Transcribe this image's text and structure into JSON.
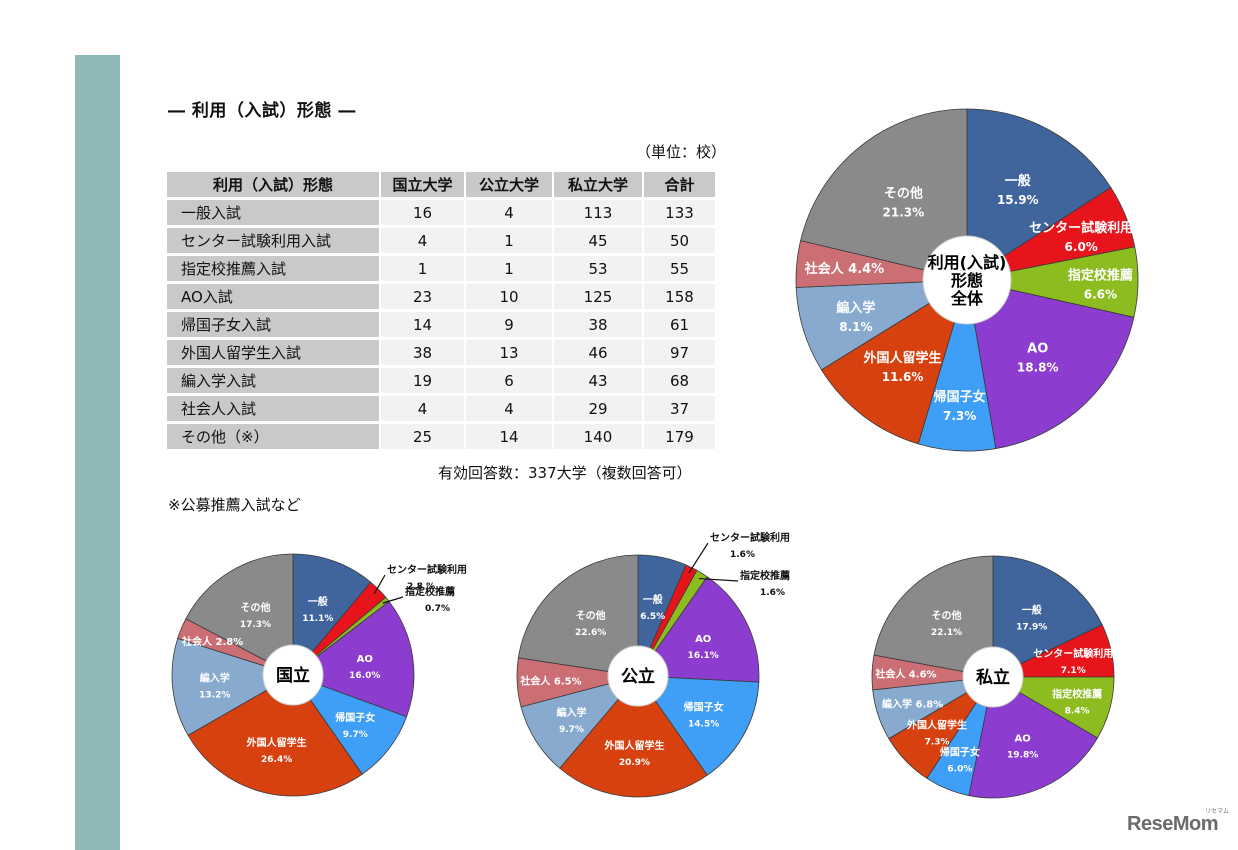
{
  "title": "― 利用（入試）形態 ―",
  "unit_note": "（単位：校）",
  "table": {
    "headers": [
      "利用（入試）形態",
      "国立大学",
      "公立大学",
      "私立大学",
      "合計"
    ],
    "rows": [
      {
        "label": "一般入試",
        "values": [
          "16",
          "4",
          "113",
          "133"
        ]
      },
      {
        "label": "センター試験利用入試",
        "values": [
          "4",
          "1",
          "45",
          "50"
        ]
      },
      {
        "label": "指定校推薦入試",
        "values": [
          "1",
          "1",
          "53",
          "55"
        ]
      },
      {
        "label": "AO入試",
        "values": [
          "23",
          "10",
          "125",
          "158"
        ]
      },
      {
        "label": "帰国子女入試",
        "values": [
          "14",
          "9",
          "38",
          "61"
        ]
      },
      {
        "label": "外国人留学生入試",
        "values": [
          "38",
          "13",
          "46",
          "97"
        ]
      },
      {
        "label": "編入学入試",
        "values": [
          "19",
          "6",
          "43",
          "68"
        ]
      },
      {
        "label": "社会人入試",
        "values": [
          "4",
          "4",
          "29",
          "37"
        ]
      },
      {
        "label": "その他（※）",
        "values": [
          "25",
          "14",
          "140",
          "179"
        ]
      }
    ]
  },
  "response_note": "有効回答数：337大学（複数回答可）",
  "footnote": "※公募推薦入試など",
  "colors": {
    "一般": "#3f659c",
    "センター試験利用": "#e8141b",
    "指定校推薦": "#8cbc1f",
    "AO": "#8c3ccf",
    "帰国子女": "#3f9ef5",
    "外国人留学生": "#d7400f",
    "編入学": "#88aacf",
    "社会人": "#cc6f75",
    "その他": "#8a8a8a",
    "sidebar": "#8fb9b9",
    "table_header_bg": "#c9c9c9",
    "table_cell_bg": "#f2f2f2"
  },
  "logo": {
    "text": "ReseMom",
    "sub": "リセマム"
  },
  "chart_data": [
    {
      "type": "pie",
      "title": "利用（入試）形態 全体",
      "center_label": [
        "利用(入試)",
        "形態",
        "全体"
      ],
      "categories": [
        "一般",
        "センター試験利用",
        "指定校推薦",
        "AO",
        "帰国子女",
        "外国人留学生",
        "編入学",
        "社会人",
        "その他"
      ],
      "values": [
        15.9,
        6.0,
        6.6,
        18.8,
        7.3,
        11.6,
        8.1,
        4.4,
        21.3
      ],
      "labels": [
        "15.9%",
        "6.0%",
        "6.6%",
        "18.8%",
        "7.3%",
        "11.6%",
        "8.1%",
        "4.4%",
        "21.3%"
      ]
    },
    {
      "type": "pie",
      "title": "国立",
      "center_label": [
        "国立"
      ],
      "categories": [
        "一般",
        "センター試験利用",
        "指定校推薦",
        "AO",
        "帰国子女",
        "外国人留学生",
        "編入学",
        "社会人",
        "その他"
      ],
      "values": [
        11.1,
        2.8,
        0.7,
        16.0,
        9.7,
        26.4,
        13.2,
        2.8,
        17.3
      ],
      "labels": [
        "11.1%",
        "2.8 %",
        "0.7%",
        "16.0%",
        "9.7%",
        "26.4%",
        "13.2%",
        "2.8%",
        "17.3%"
      ]
    },
    {
      "type": "pie",
      "title": "公立",
      "center_label": [
        "公立"
      ],
      "categories": [
        "一般",
        "センター試験利用",
        "指定校推薦",
        "AO",
        "帰国子女",
        "外国人留学生",
        "編入学",
        "社会人",
        "その他"
      ],
      "values": [
        6.5,
        1.6,
        1.6,
        16.1,
        14.5,
        20.9,
        9.7,
        6.5,
        22.6
      ],
      "labels": [
        "6.5%",
        "1.6%",
        "1.6%",
        "16.1%",
        "14.5%",
        "20.9%",
        "9.7%",
        "6.5%",
        "22.6%"
      ]
    },
    {
      "type": "pie",
      "title": "私立",
      "center_label": [
        "私立"
      ],
      "categories": [
        "一般",
        "センター試験利用",
        "指定校推薦",
        "AO",
        "帰国子女",
        "外国人留学生",
        "編入学",
        "社会人",
        "その他"
      ],
      "values": [
        17.9,
        7.1,
        8.4,
        19.8,
        6.0,
        7.3,
        6.8,
        4.6,
        22.1
      ],
      "labels": [
        "17.9%",
        "7.1%",
        "8.4%",
        "19.8%",
        "6.0%",
        "7.3%",
        "6.8%",
        "4.6%",
        "22.1%"
      ]
    }
  ]
}
